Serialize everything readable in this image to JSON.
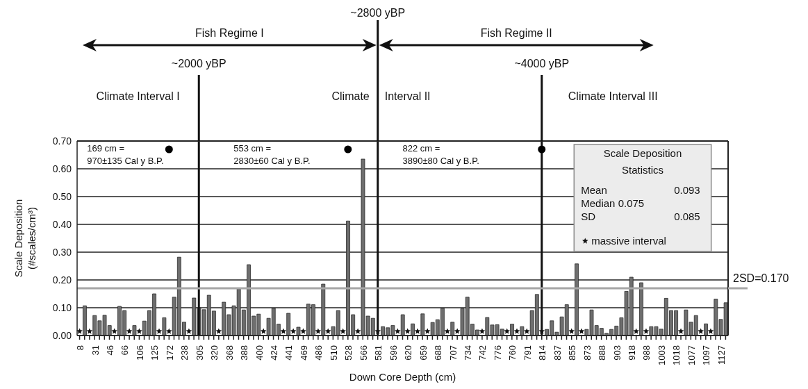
{
  "chart_data": {
    "type": "bar",
    "xlabel": "Down Core Depth (cm)",
    "ylabel": "Scale Deposition\n(#scales/cm³)",
    "categories": [
      "8",
      null,
      null,
      "31",
      null,
      null,
      "46",
      null,
      null,
      "66",
      null,
      null,
      "106",
      null,
      null,
      "125",
      null,
      null,
      "172",
      null,
      null,
      "238",
      null,
      null,
      "305",
      null,
      null,
      "320",
      null,
      null,
      "368",
      null,
      null,
      "388",
      null,
      null,
      "400",
      null,
      null,
      "424",
      null,
      null,
      "441",
      null,
      null,
      "469",
      null,
      null,
      "486",
      null,
      null,
      "510",
      null,
      null,
      "528",
      null,
      null,
      "566",
      null,
      null,
      "581",
      null,
      null,
      "596",
      null,
      null,
      "620",
      null,
      null,
      "659",
      null,
      null,
      "688",
      null,
      null,
      "707",
      null,
      null,
      "734",
      null,
      null,
      "742",
      null,
      null,
      "776",
      null,
      null,
      "760",
      null,
      null,
      "791",
      null,
      null,
      "814",
      null,
      null,
      "837",
      null,
      null,
      "855",
      null,
      null,
      "873",
      null,
      null,
      "888",
      null,
      null,
      "903",
      null,
      null,
      "918",
      null,
      null,
      "988",
      null,
      null,
      "1003",
      null,
      null,
      "1018",
      null,
      null,
      "1077",
      null,
      null,
      "1097",
      null,
      null,
      "1127",
      null
    ],
    "series": [
      {
        "color": "#6e6e6e",
        "values": [
          null,
          0.107,
          null,
          0.072,
          0.053,
          0.073,
          0.036,
          null,
          0.105,
          0.09,
          null,
          0.036,
          null,
          0.052,
          0.09,
          0.15,
          null,
          0.064,
          null,
          0.138,
          0.282,
          0.048,
          null,
          0.135,
          0.1,
          0.093,
          0.145,
          0.088,
          null,
          0.12,
          0.075,
          0.107,
          0.168,
          0.092,
          0.255,
          0.07,
          0.077,
          null,
          0.062,
          0.098,
          0.041,
          null,
          0.08,
          null,
          0.03,
          null,
          0.113,
          0.111,
          null,
          0.185,
          null,
          0.032,
          0.09,
          null,
          0.412,
          0.075,
          null,
          0.635,
          0.07,
          0.062,
          null,
          0.032,
          0.028,
          0.036,
          null,
          0.075,
          null,
          0.042,
          null,
          0.078,
          null,
          0.047,
          0.057,
          0.098,
          null,
          0.048,
          null,
          0.097,
          0.138,
          0.041,
          0.02,
          null,
          0.065,
          0.038,
          0.039,
          0.023,
          null,
          0.041,
          null,
          0.032,
          null,
          0.09,
          0.148,
          null,
          0.022,
          0.053,
          0.012,
          0.067,
          0.111,
          null,
          0.258,
          null,
          0.022,
          0.092,
          0.036,
          0.026,
          0.008,
          0.022,
          0.034,
          0.064,
          0.159,
          0.21,
          null,
          0.19,
          null,
          0.032,
          0.032,
          0.023,
          0.134,
          0.09,
          0.09,
          null,
          0.092,
          0.048,
          0.072,
          null,
          0.042,
          null,
          0.131,
          0.058,
          0.118
        ]
      },
      {
        "type": "scatter",
        "name": "massive interval",
        "color": "#111111",
        "marker": "star",
        "values": [
          0.015,
          null,
          0.015,
          null,
          null,
          null,
          null,
          0.015,
          null,
          null,
          0.015,
          null,
          0.015,
          null,
          null,
          null,
          0.015,
          null,
          0.015,
          null,
          null,
          null,
          0.015,
          null,
          null,
          null,
          null,
          null,
          0.015,
          null,
          null,
          null,
          null,
          null,
          null,
          null,
          null,
          0.015,
          null,
          null,
          null,
          0.015,
          null,
          0.015,
          null,
          0.015,
          null,
          null,
          0.015,
          null,
          0.015,
          null,
          null,
          0.015,
          null,
          null,
          0.015,
          null,
          null,
          null,
          0.015,
          null,
          null,
          null,
          0.015,
          null,
          0.015,
          null,
          0.015,
          null,
          0.015,
          null,
          null,
          null,
          0.015,
          null,
          0.015,
          null,
          null,
          null,
          null,
          0.015,
          null,
          null,
          null,
          null,
          0.015,
          null,
          0.015,
          null,
          0.015,
          null,
          null,
          0.015,
          null,
          null,
          null,
          null,
          null,
          0.015,
          null,
          0.015,
          null,
          null,
          null,
          null,
          null,
          null,
          null,
          null,
          null,
          null,
          0.015,
          null,
          0.015,
          null,
          null,
          null,
          null,
          null,
          null,
          0.015,
          null,
          null,
          null,
          0.015,
          null,
          0.015,
          null,
          null,
          null
        ]
      },
      {
        "type": "scatter",
        "color": "#000000",
        "marker": "circle",
        "x": [
          "172",
          "528",
          "814"
        ],
        "values": [
          0.67,
          0.67,
          0.67
        ]
      }
    ],
    "ylim": [
      0,
      0.7
    ],
    "yticks": [
      {
        "value": 0,
        "label": "0.00"
      },
      {
        "value": 0.1,
        "label": "0.10"
      },
      {
        "value": 0.2,
        "label": "0.20"
      },
      {
        "value": 0.3,
        "label": "0.30"
      },
      {
        "value": 0.4,
        "label": "0.40"
      },
      {
        "value": 0.5,
        "label": "0.50"
      },
      {
        "value": 0.6,
        "label": "0.60"
      },
      {
        "value": 0.7,
        "label": "0.70"
      }
    ],
    "grid": "y",
    "legend": "right",
    "ref_lines": [
      {
        "axis": "x",
        "value": "305",
        "label": "~2000 yBP",
        "color": "#111111"
      },
      {
        "axis": "x",
        "value": "581",
        "label": "~2800 yBP",
        "color": "#111111"
      },
      {
        "axis": "x",
        "value": "814",
        "label": "~4000 yBP",
        "color": "#111111"
      },
      {
        "axis": "y",
        "value": 0.17,
        "label": "2SD=0.170",
        "color": "#a6a6a6"
      }
    ],
    "annotations": [
      "Fish Regime I",
      "Fish Regime II",
      "Climate Interval I",
      "Climate",
      "Interval II",
      "Climate Interval III",
      "169 cm =\n970±135 Cal y B.P.",
      "553 cm =\n2830±60 Cal y B.P.",
      "822 cm =\n3890±80 Cal y B.P.",
      "Scale Deposition Statistics",
      "Mean",
      "0.093",
      "Median 0.075",
      "SD",
      "0.085"
    ]
  }
}
